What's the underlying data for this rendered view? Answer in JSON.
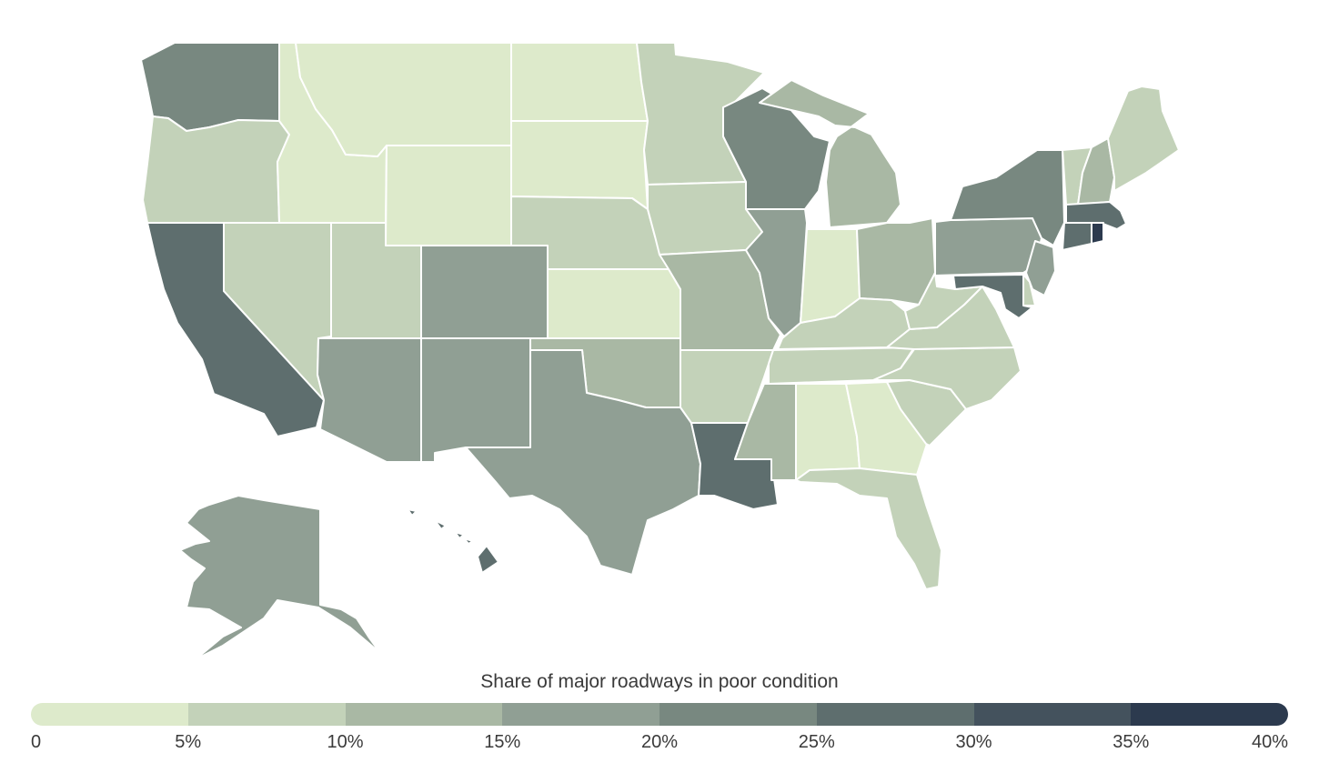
{
  "legend": {
    "title": "Share of major roadways in poor condition",
    "ticks": [
      "0",
      "5%",
      "10%",
      "15%",
      "20%",
      "25%",
      "30%",
      "35%",
      "40%"
    ],
    "bins": [
      {
        "range": [
          0,
          5
        ],
        "color": "#ddeacb"
      },
      {
        "range": [
          5,
          10
        ],
        "color": "#c3d2b9"
      },
      {
        "range": [
          10,
          15
        ],
        "color": "#a9b8a4"
      },
      {
        "range": [
          15,
          20
        ],
        "color": "#909f94"
      },
      {
        "range": [
          20,
          25
        ],
        "color": "#788880"
      },
      {
        "range": [
          25,
          30
        ],
        "color": "#5e6e6e"
      },
      {
        "range": [
          30,
          35
        ],
        "color": "#44525d"
      },
      {
        "range": [
          35,
          40
        ],
        "color": "#2c3a4e"
      }
    ]
  },
  "states": [
    {
      "code": "WA",
      "bin": 4
    },
    {
      "code": "OR",
      "bin": 1
    },
    {
      "code": "CA",
      "bin": 5
    },
    {
      "code": "NV",
      "bin": 1
    },
    {
      "code": "ID",
      "bin": 0
    },
    {
      "code": "MT",
      "bin": 0
    },
    {
      "code": "WY",
      "bin": 0
    },
    {
      "code": "UT",
      "bin": 1
    },
    {
      "code": "AZ",
      "bin": 3
    },
    {
      "code": "CO",
      "bin": 3
    },
    {
      "code": "NM",
      "bin": 3
    },
    {
      "code": "ND",
      "bin": 0
    },
    {
      "code": "SD",
      "bin": 0
    },
    {
      "code": "NE",
      "bin": 1
    },
    {
      "code": "KS",
      "bin": 0
    },
    {
      "code": "OK",
      "bin": 2
    },
    {
      "code": "TX",
      "bin": 3
    },
    {
      "code": "MN",
      "bin": 1
    },
    {
      "code": "IA",
      "bin": 1
    },
    {
      "code": "MO",
      "bin": 2
    },
    {
      "code": "AR",
      "bin": 1
    },
    {
      "code": "LA",
      "bin": 5
    },
    {
      "code": "WI",
      "bin": 4
    },
    {
      "code": "IL",
      "bin": 3
    },
    {
      "code": "MI",
      "bin": 2
    },
    {
      "code": "IN",
      "bin": 0
    },
    {
      "code": "OH",
      "bin": 2
    },
    {
      "code": "KY",
      "bin": 1
    },
    {
      "code": "TN",
      "bin": 1
    },
    {
      "code": "MS",
      "bin": 2
    },
    {
      "code": "AL",
      "bin": 0
    },
    {
      "code": "GA",
      "bin": 0
    },
    {
      "code": "FL",
      "bin": 1
    },
    {
      "code": "SC",
      "bin": 1
    },
    {
      "code": "NC",
      "bin": 1
    },
    {
      "code": "VA",
      "bin": 1
    },
    {
      "code": "WV",
      "bin": 1
    },
    {
      "code": "PA",
      "bin": 3
    },
    {
      "code": "NY",
      "bin": 4
    },
    {
      "code": "VT",
      "bin": 1
    },
    {
      "code": "NH",
      "bin": 2
    },
    {
      "code": "ME",
      "bin": 1
    },
    {
      "code": "MA",
      "bin": 5
    },
    {
      "code": "RI",
      "bin": 7
    },
    {
      "code": "CT",
      "bin": 5
    },
    {
      "code": "NJ",
      "bin": 3
    },
    {
      "code": "DE",
      "bin": 1
    },
    {
      "code": "MD",
      "bin": 5
    },
    {
      "code": "AK",
      "bin": 3
    },
    {
      "code": "HI",
      "bin": 5
    }
  ]
}
